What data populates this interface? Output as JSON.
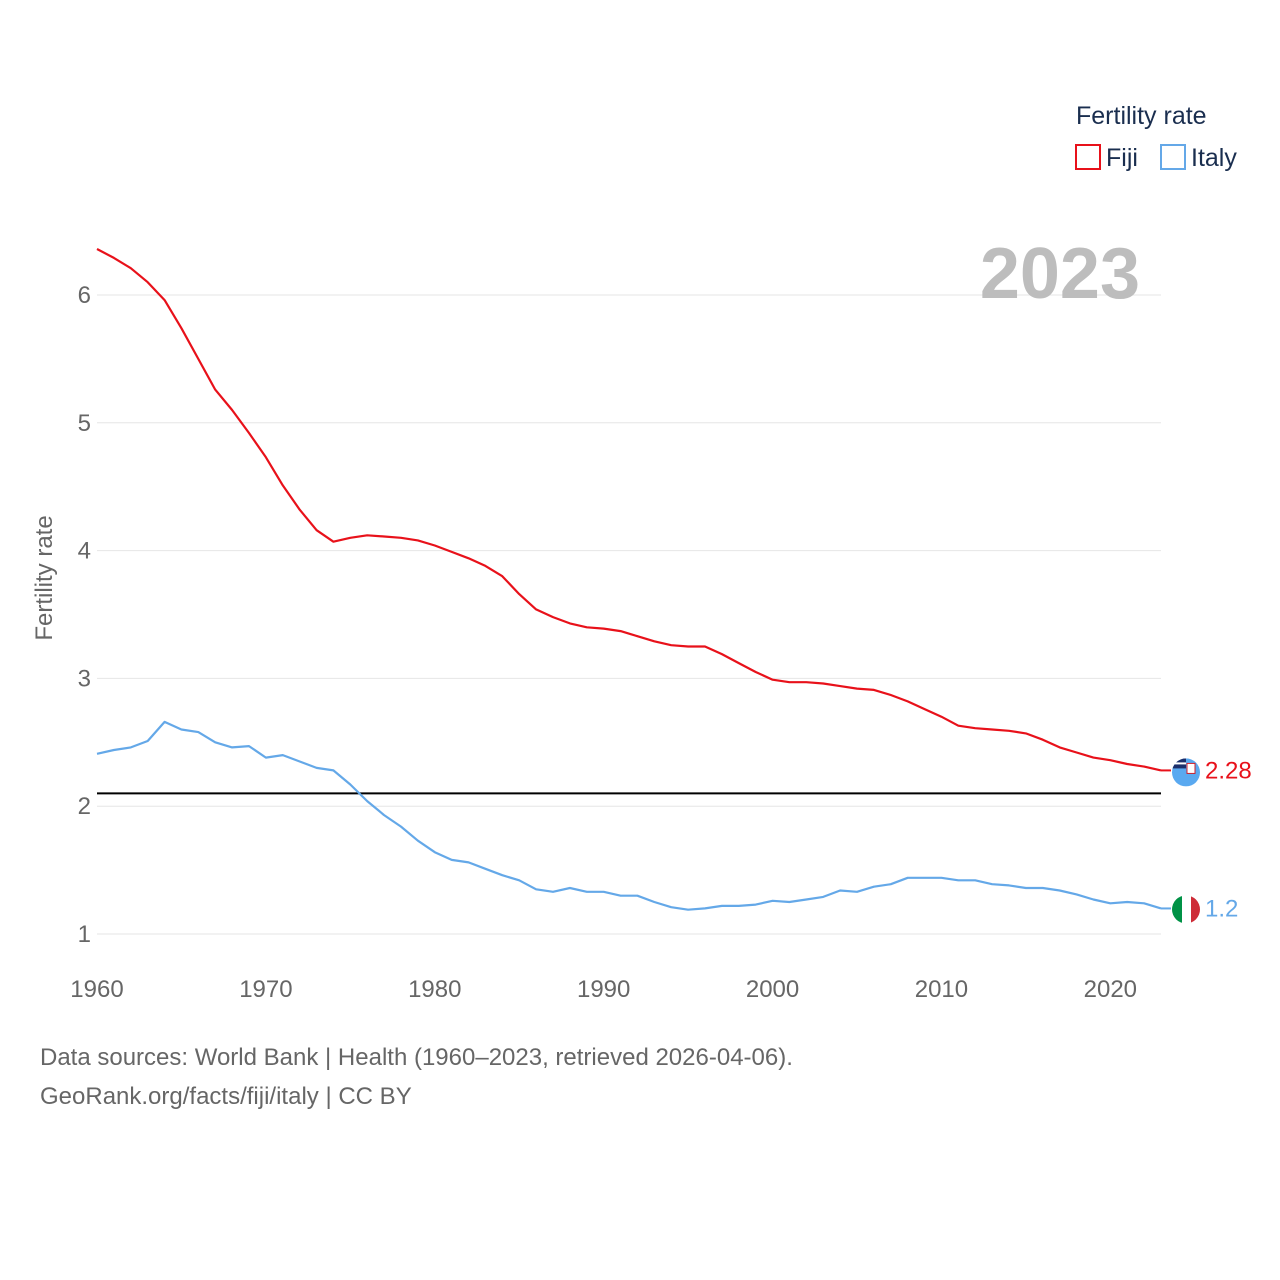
{
  "footer": {
    "sources": "Data sources: World Bank | Health (1960–2023, retrieved 2026-04-06).",
    "credit": "GeoRank.org/facts/fiji/italy | CC BY"
  },
  "chart_data": {
    "type": "line",
    "title": "",
    "year_label": "2023",
    "legend_title": "Fertility rate",
    "xlabel": "",
    "ylabel": "Fertility rate",
    "xlim": [
      1960,
      2023
    ],
    "ylim": [
      0.9,
      6.7
    ],
    "xticks": [
      1960,
      1970,
      1980,
      1990,
      2000,
      2010,
      2020
    ],
    "yticks": [
      1,
      2,
      3,
      4,
      5,
      6
    ],
    "grid": true,
    "legend_position": "top-right",
    "reference_line": {
      "y": 2.1,
      "color": "#000000"
    },
    "x": [
      1960,
      1961,
      1962,
      1963,
      1964,
      1965,
      1966,
      1967,
      1968,
      1969,
      1970,
      1971,
      1972,
      1973,
      1974,
      1975,
      1976,
      1977,
      1978,
      1979,
      1980,
      1981,
      1982,
      1983,
      1984,
      1985,
      1986,
      1987,
      1988,
      1989,
      1990,
      1991,
      1992,
      1993,
      1994,
      1995,
      1996,
      1997,
      1998,
      1999,
      2000,
      2001,
      2002,
      2003,
      2004,
      2005,
      2006,
      2007,
      2008,
      2009,
      2010,
      2011,
      2012,
      2013,
      2014,
      2015,
      2016,
      2017,
      2018,
      2019,
      2020,
      2021,
      2022,
      2023
    ],
    "series": [
      {
        "name": "Fiji",
        "color": "#e8111a",
        "end_label": "2.28",
        "flag": "fiji-flag-icon",
        "values": [
          6.36,
          6.29,
          6.21,
          6.1,
          5.96,
          5.74,
          5.5,
          5.26,
          5.1,
          4.92,
          4.73,
          4.51,
          4.32,
          4.16,
          4.07,
          4.1,
          4.12,
          4.11,
          4.1,
          4.08,
          4.04,
          3.99,
          3.94,
          3.88,
          3.8,
          3.66,
          3.54,
          3.48,
          3.43,
          3.4,
          3.39,
          3.37,
          3.33,
          3.29,
          3.26,
          3.25,
          3.25,
          3.19,
          3.12,
          3.05,
          2.99,
          2.97,
          2.97,
          2.96,
          2.94,
          2.92,
          2.91,
          2.87,
          2.82,
          2.76,
          2.7,
          2.63,
          2.61,
          2.6,
          2.59,
          2.57,
          2.52,
          2.46,
          2.42,
          2.38,
          2.36,
          2.33,
          2.31,
          2.28
        ]
      },
      {
        "name": "Italy",
        "color": "#64a8e8",
        "end_label": "1.2",
        "flag": "italy-flag-icon",
        "values": [
          2.41,
          2.44,
          2.46,
          2.51,
          2.66,
          2.6,
          2.58,
          2.5,
          2.46,
          2.47,
          2.38,
          2.4,
          2.35,
          2.3,
          2.28,
          2.17,
          2.04,
          1.93,
          1.84,
          1.73,
          1.64,
          1.58,
          1.56,
          1.51,
          1.46,
          1.42,
          1.35,
          1.33,
          1.36,
          1.33,
          1.33,
          1.3,
          1.3,
          1.25,
          1.21,
          1.19,
          1.2,
          1.22,
          1.22,
          1.23,
          1.26,
          1.25,
          1.27,
          1.29,
          1.34,
          1.33,
          1.37,
          1.39,
          1.44,
          1.44,
          1.44,
          1.42,
          1.42,
          1.39,
          1.38,
          1.36,
          1.36,
          1.34,
          1.31,
          1.27,
          1.24,
          1.25,
          1.24,
          1.2
        ]
      }
    ]
  }
}
